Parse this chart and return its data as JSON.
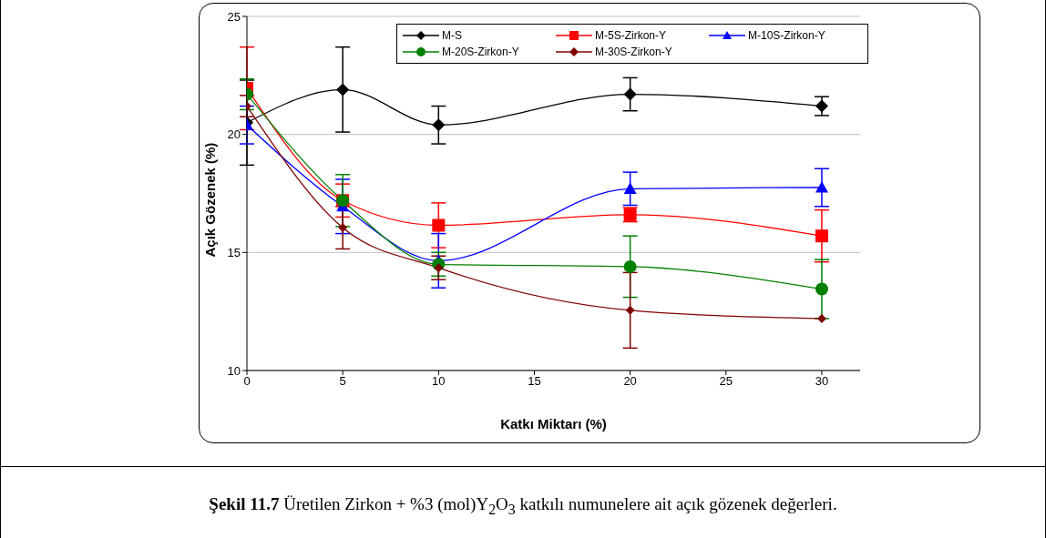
{
  "chart_data": {
    "type": "line",
    "xlabel": "Katkı Miktarı (%)",
    "ylabel": "Açık Gözenek (%)",
    "x": [
      0,
      5,
      10,
      20,
      30
    ],
    "series": [
      {
        "name": "M-S",
        "color": "#000000",
        "marker": "diamond",
        "values": [
          20.5,
          21.9,
          20.4,
          21.7,
          21.2
        ],
        "errors": [
          1.8,
          1.8,
          0.8,
          0.7,
          0.4
        ]
      },
      {
        "name": "M-5S-Zirkon-Y",
        "color": "#ff0000",
        "marker": "square",
        "values": [
          21.95,
          17.2,
          16.15,
          16.6,
          15.7
        ],
        "errors": [
          1.75,
          0.7,
          0.95,
          0.3,
          1.1
        ]
      },
      {
        "name": "M-10S-Zirkon-Y",
        "color": "#0000ff",
        "marker": "triangle",
        "values": [
          20.4,
          16.95,
          14.65,
          17.7,
          17.75
        ],
        "errors": [
          0.8,
          1.15,
          1.15,
          0.7,
          0.8
        ]
      },
      {
        "name": "M-20S-Zirkon-Y",
        "color": "#008000",
        "marker": "circle",
        "values": [
          21.7,
          17.2,
          14.5,
          14.4,
          13.45
        ],
        "errors": [
          0.65,
          1.1,
          0.5,
          1.3,
          1.25
        ]
      },
      {
        "name": "M-30S-Zirkon-Y",
        "color": "#800000",
        "marker": "diamond",
        "values": [
          21.2,
          16.05,
          14.35,
          12.55,
          12.2
        ],
        "errors": [
          0.45,
          0.9,
          0.5,
          1.6,
          null
        ]
      }
    ],
    "xlim": [
      0,
      32
    ],
    "xticks": [
      0,
      5,
      10,
      15,
      20,
      25,
      30
    ],
    "ylim": [
      10,
      25
    ],
    "yticks": [
      10,
      15,
      20,
      25
    ],
    "grid": "y",
    "legend": "top right",
    "line_style": "solid",
    "annotations": [
      "Şekil 11.7",
      "Üretilen Zirkon + %3 (mol)Y$_{2}$O$_{3}$ katkılı numunelere ait açık gözenek değerleri."
    ]
  }
}
